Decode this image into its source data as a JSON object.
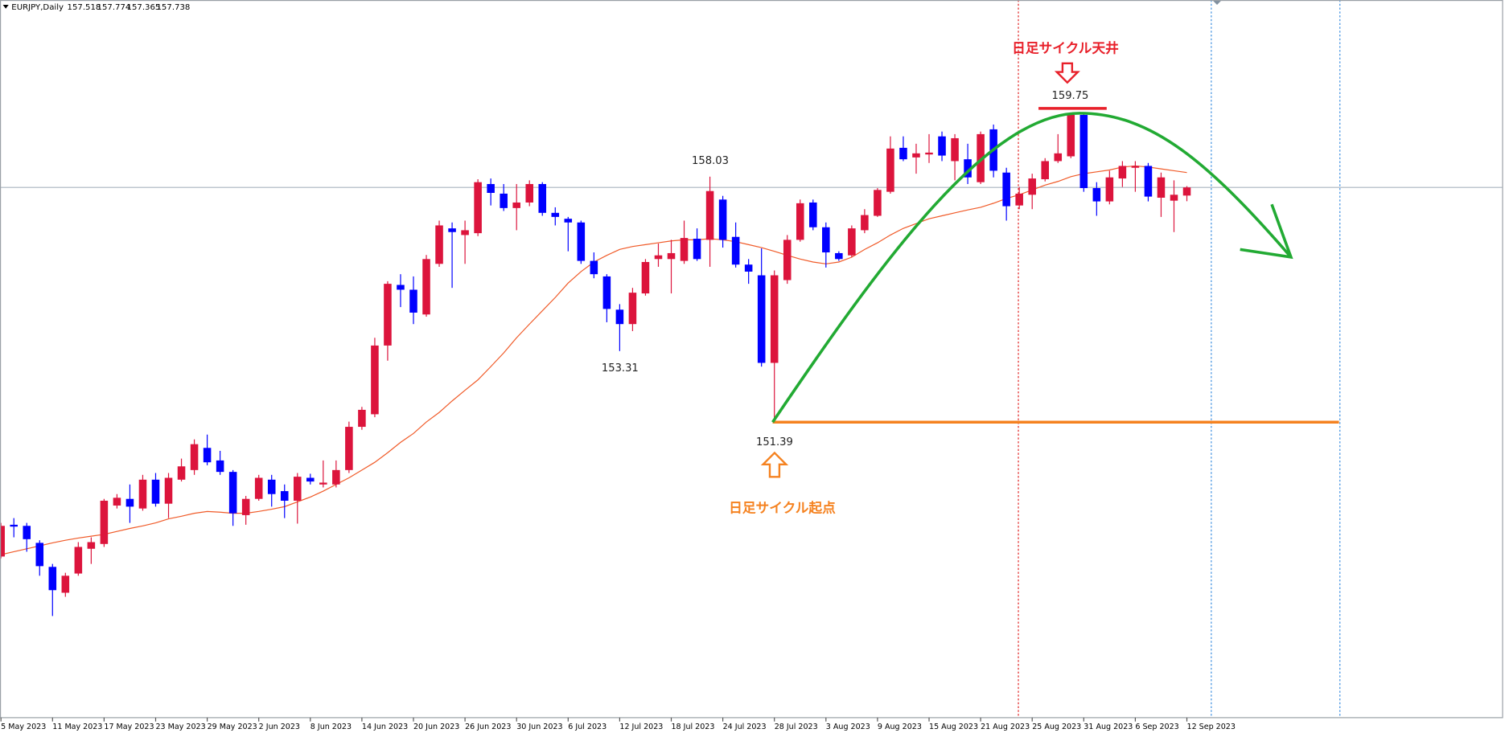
{
  "chart_data": {
    "type": "candlestick",
    "title": "EURJPY,Daily",
    "categories": [
      "5 May 2023",
      null,
      null,
      null,
      "11 May 2023",
      null,
      null,
      null,
      "17 May 2023",
      null,
      null,
      null,
      "23 May 2023",
      null,
      null,
      null,
      "29 May 2023",
      null,
      null,
      null,
      "2 Jun 2023",
      null,
      null,
      null,
      "8 Jun 2023",
      null,
      null,
      null,
      "14 Jun 2023",
      null,
      null,
      null,
      "20 Jun 2023",
      null,
      null,
      null,
      "26 Jun 2023",
      null,
      null,
      null,
      "30 Jun 2023",
      null,
      null,
      null,
      "6 Jul 2023",
      null,
      null,
      null,
      "12 Jul 2023",
      null,
      null,
      null,
      "18 Jul 2023",
      null,
      null,
      null,
      "24 Jul 2023",
      null,
      null,
      null,
      "28 Jul 2023",
      null,
      null,
      null,
      "3 Aug 2023",
      null,
      null,
      null,
      "9 Aug 2023",
      null,
      null,
      null,
      "15 Aug 2023",
      null,
      null,
      null,
      "21 Aug 2023",
      null,
      null,
      null,
      "25 Aug 2023",
      null,
      null,
      null,
      "31 Aug 2023",
      null,
      null,
      null,
      "6 Sep 2023",
      null,
      null,
      null,
      "12 Sep 2023"
    ],
    "open": [
      147.75,
      148.61,
      148.58,
      148.12,
      147.47,
      146.77,
      147.29,
      147.96,
      148.09,
      149.13,
      149.31,
      149.05,
      149.83,
      149.18,
      149.83,
      150.09,
      150.69,
      150.35,
      150.04,
      148.87,
      149.31,
      149.83,
      149.52,
      149.26,
      149.88,
      149.7,
      149.7,
      150.09,
      151.26,
      151.6,
      153.46,
      155.1,
      154.97,
      154.3,
      155.67,
      156.63,
      156.45,
      156.5,
      157.83,
      157.57,
      157.18,
      157.33,
      157.83,
      157.05,
      156.89,
      156.79,
      155.75,
      155.33,
      154.43,
      154.04,
      154.87,
      155.8,
      155.8,
      155.75,
      156.35,
      156.32,
      157.41,
      156.4,
      155.65,
      155.36,
      152.99,
      155.23,
      156.32,
      157.33,
      156.66,
      155.96,
      155.9,
      156.58,
      156.97,
      157.62,
      158.81,
      158.55,
      158.63,
      159.12,
      158.45,
      158.5,
      157.88,
      159.31,
      158.14,
      157.25,
      157.54,
      157.96,
      158.45,
      158.58,
      159.7,
      157.72,
      157.36,
      157.98,
      158.27,
      158.32,
      157.46,
      157.38,
      157.518
    ],
    "high": [
      148.66,
      148.79,
      148.66,
      148.19,
      147.55,
      147.31,
      148.14,
      148.27,
      149.31,
      149.44,
      149.7,
      149.96,
      150.01,
      150.01,
      150.4,
      150.92,
      151.05,
      150.61,
      150.09,
      149.39,
      149.96,
      149.96,
      149.7,
      150.01,
      149.99,
      150.35,
      150.35,
      151.4,
      151.8,
      153.67,
      155.2,
      155.39,
      155.33,
      155.91,
      156.84,
      156.79,
      156.84,
      157.96,
      157.98,
      157.83,
      157.83,
      157.93,
      157.88,
      157.2,
      156.94,
      156.84,
      155.98,
      155.39,
      154.58,
      155.02,
      155.8,
      156.22,
      156.32,
      156.84,
      156.63,
      158.03,
      157.51,
      156.79,
      155.8,
      156.09,
      155.49,
      156.45,
      157.41,
      157.41,
      156.79,
      156.01,
      156.71,
      157.15,
      157.72,
      159.12,
      159.12,
      158.92,
      159.18,
      159.25,
      159.18,
      158.92,
      159.25,
      159.44,
      158.27,
      157.75,
      158.11,
      158.53,
      159.18,
      159.75,
      159.72,
      157.88,
      158.19,
      158.45,
      158.45,
      158.4,
      158.14,
      157.93,
      157.774
    ],
    "low": [
      147.7,
      148.27,
      147.88,
      147.23,
      146.14,
      146.66,
      147.23,
      147.55,
      148.01,
      149.05,
      148.66,
      148.99,
      149.1,
      148.79,
      149.78,
      149.96,
      150.22,
      149.96,
      148.58,
      148.61,
      149.26,
      149.1,
      148.79,
      148.64,
      149.7,
      149.62,
      149.62,
      150.01,
      151.18,
      151.52,
      153.05,
      154.5,
      154.04,
      154.24,
      155.59,
      155.02,
      155.67,
      156.42,
      157.25,
      157.1,
      156.58,
      157.23,
      156.97,
      156.71,
      156.01,
      155.67,
      155.28,
      154.09,
      153.31,
      153.85,
      154.81,
      155.59,
      154.87,
      155.67,
      155.75,
      155.59,
      156.11,
      155.57,
      155.13,
      152.89,
      151.39,
      155.13,
      156.27,
      156.58,
      155.57,
      155.75,
      155.85,
      156.5,
      156.94,
      157.57,
      158.45,
      158.11,
      158.4,
      158.45,
      157.93,
      157.83,
      157.83,
      158.01,
      156.84,
      157.15,
      157.15,
      157.9,
      158.4,
      158.53,
      157.62,
      156.97,
      157.28,
      157.75,
      157.62,
      157.36,
      156.94,
      156.53,
      157.365
    ],
    "close": [
      148.58,
      148.56,
      148.22,
      147.49,
      146.84,
      147.23,
      148.01,
      148.14,
      149.26,
      149.34,
      149.1,
      149.83,
      149.18,
      149.88,
      150.19,
      150.79,
      150.3,
      150.04,
      148.92,
      149.31,
      149.88,
      149.44,
      149.26,
      149.91,
      149.78,
      149.75,
      150.09,
      151.26,
      151.72,
      153.46,
      155.13,
      154.97,
      154.35,
      155.8,
      156.71,
      156.53,
      156.58,
      157.88,
      157.59,
      157.18,
      157.33,
      157.83,
      157.05,
      156.94,
      156.79,
      155.75,
      155.39,
      154.45,
      154.04,
      154.89,
      155.72,
      155.9,
      155.96,
      156.37,
      155.8,
      157.64,
      156.32,
      155.65,
      155.46,
      152.99,
      155.36,
      156.32,
      157.31,
      156.66,
      155.98,
      155.8,
      156.63,
      156.99,
      157.67,
      158.79,
      158.5,
      158.66,
      158.68,
      158.6,
      159.07,
      158.01,
      159.18,
      158.19,
      157.23,
      157.57,
      157.98,
      158.45,
      158.66,
      159.7,
      157.72,
      157.36,
      158.01,
      158.32,
      158.32,
      157.49,
      158.01,
      157.54,
      157.738
    ],
    "moving_average": {
      "color": "#f05a28",
      "values": [
        147.8,
        147.88,
        147.96,
        148.04,
        148.12,
        148.19,
        148.25,
        148.3,
        148.35,
        148.43,
        148.51,
        148.58,
        148.66,
        148.77,
        148.84,
        148.92,
        148.97,
        148.95,
        148.92,
        148.92,
        148.97,
        149.03,
        149.1,
        149.23,
        149.36,
        149.52,
        149.7,
        149.88,
        150.09,
        150.3,
        150.56,
        150.84,
        151.08,
        151.39,
        151.65,
        151.96,
        152.25,
        152.53,
        152.89,
        153.26,
        153.67,
        154.04,
        154.4,
        154.76,
        155.15,
        155.46,
        155.72,
        155.9,
        156.06,
        156.14,
        156.19,
        156.24,
        156.29,
        156.32,
        156.32,
        156.35,
        156.32,
        156.27,
        156.19,
        156.11,
        156.01,
        155.9,
        155.8,
        155.72,
        155.67,
        155.72,
        155.85,
        156.06,
        156.24,
        156.45,
        156.63,
        156.76,
        156.89,
        156.97,
        157.05,
        157.13,
        157.2,
        157.31,
        157.44,
        157.54,
        157.67,
        157.8,
        157.9,
        158.03,
        158.11,
        158.16,
        158.21,
        158.29,
        158.32,
        158.29,
        158.24,
        158.19,
        158.14
      ]
    },
    "bull_color": "#dc143c",
    "bear_color": "#0000ff",
    "bid_line_color": "#a9b4bf",
    "ylim": [
      143.39,
      162.81
    ],
    "annotations": [
      "日足サイクル天井",
      "日足サイクル起点"
    ]
  }
}
